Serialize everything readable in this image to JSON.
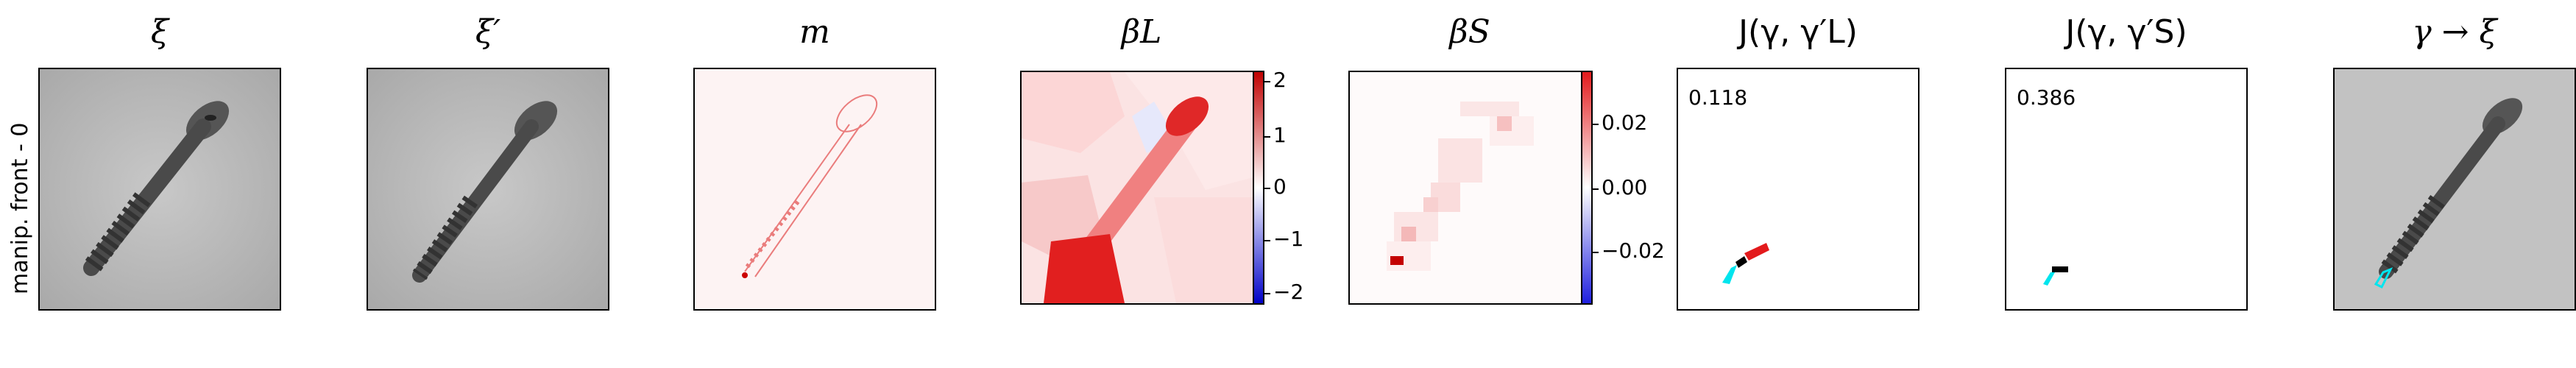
{
  "row_label": "manip. front - 0",
  "titles": {
    "p1": "ξ",
    "p2": "ξ′",
    "p3": "m",
    "p4": "βL",
    "p5": "βS",
    "p6": "J(γ, γ′L)",
    "p7": "J(γ, γ′S)",
    "p8": "γ → ξ"
  },
  "scores": {
    "p6": "0.118",
    "p7": "0.386"
  },
  "colorbars": {
    "p4": {
      "ticks": [
        "2",
        "1",
        "0",
        "−1",
        "−2"
      ]
    },
    "p5": {
      "ticks": [
        "0.02",
        "0.00",
        "−0.02"
      ]
    }
  },
  "colors": {
    "positive": "#e31a1c",
    "negative": "#1f1fdf",
    "mask_contour": "#00e5ee",
    "overlap": "#000000"
  }
}
